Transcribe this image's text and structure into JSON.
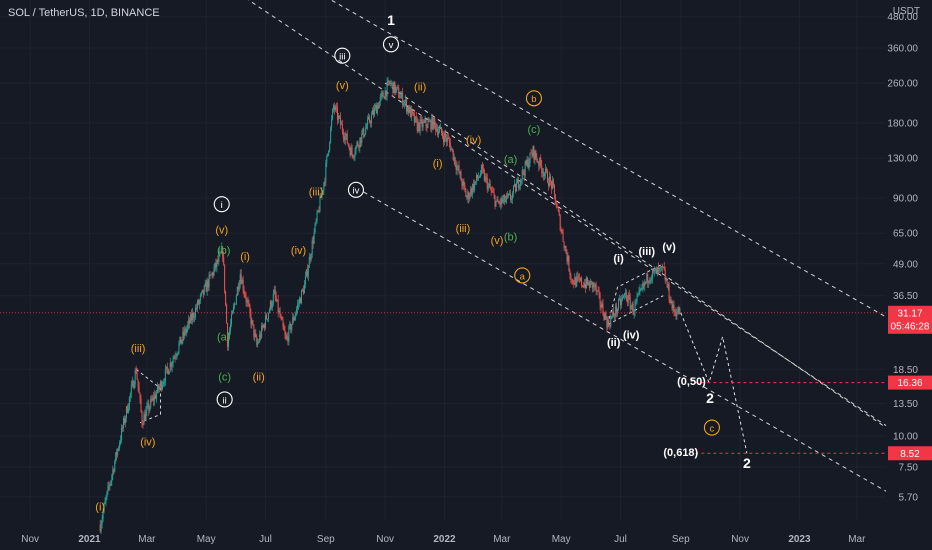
{
  "header": {
    "title": "SOL / TetherUS, 1D, BINANCE"
  },
  "price_scale": {
    "unit": "USDT",
    "ticks": [
      "480.00",
      "360.00",
      "260.00",
      "180.00",
      "130.00",
      "90.00",
      "65.00",
      "49.00",
      "36.50",
      "18.50",
      "13.50",
      "10.00",
      "7.50",
      "5.70"
    ]
  },
  "time_axis": {
    "labels": [
      "Nov",
      "2021",
      "Mar",
      "May",
      "Jul",
      "Sep",
      "Nov",
      "2022",
      "Mar",
      "May",
      "Jul",
      "Sep",
      "Nov",
      "2023",
      "Mar"
    ]
  },
  "badges": {
    "current": {
      "price": "31.17",
      "countdown": "05:46:28",
      "color": "#f23645"
    },
    "target1": {
      "price": "16.36",
      "color": "#f23645"
    },
    "target2": {
      "price": "8.52",
      "color": "#f23645"
    }
  },
  "colors": {
    "up": "#26a69a",
    "down": "#ef5350",
    "orange": "#f7a21b",
    "green": "#4caf50",
    "white": "#ffffff"
  },
  "chart_data": {
    "type": "candlestick",
    "symbol": "SOL / TetherUS",
    "interval": "1D",
    "exchange": "BINANCE",
    "y_scale": "log",
    "ylim": [
      4.6,
      560
    ],
    "x_range": [
      "2020-10-01",
      "2023-03-31"
    ],
    "last_price": 31.17,
    "key_points": [
      {
        "date": "2021-01-12",
        "price": 4.4
      },
      {
        "date": "2021-02-18",
        "price": 18.5
      },
      {
        "date": "2021-02-24",
        "price": 11.5
      },
      {
        "date": "2021-03-15",
        "price": 16.0
      },
      {
        "date": "2021-05-18",
        "price": 55.0
      },
      {
        "date": "2021-05-23",
        "price": 24.0
      },
      {
        "date": "2021-06-05",
        "price": 45.0
      },
      {
        "date": "2021-06-22",
        "price": 23.0
      },
      {
        "date": "2021-07-10",
        "price": 37.0
      },
      {
        "date": "2021-07-22",
        "price": 24.0
      },
      {
        "date": "2021-08-10",
        "price": 40.0
      },
      {
        "date": "2021-08-31",
        "price": 110.0
      },
      {
        "date": "2021-09-09",
        "price": 210.0
      },
      {
        "date": "2021-09-28",
        "price": 135.0
      },
      {
        "date": "2021-10-10",
        "price": 165.0
      },
      {
        "date": "2021-10-22",
        "price": 205.0
      },
      {
        "date": "2021-11-06",
        "price": 260.0
      },
      {
        "date": "2021-11-20",
        "price": 222.0
      },
      {
        "date": "2021-12-04",
        "price": 175.0
      },
      {
        "date": "2021-12-20",
        "price": 180.0
      },
      {
        "date": "2022-01-06",
        "price": 150.0
      },
      {
        "date": "2022-01-24",
        "price": 90.0
      },
      {
        "date": "2022-02-08",
        "price": 115.0
      },
      {
        "date": "2022-02-24",
        "price": 85.0
      },
      {
        "date": "2022-03-10",
        "price": 90.0
      },
      {
        "date": "2022-04-02",
        "price": 138.0
      },
      {
        "date": "2022-04-22",
        "price": 100.0
      },
      {
        "date": "2022-05-12",
        "price": 42.0
      },
      {
        "date": "2022-06-04",
        "price": 40.0
      },
      {
        "date": "2022-06-18",
        "price": 28.0
      },
      {
        "date": "2022-07-06",
        "price": 37.0
      },
      {
        "date": "2022-07-14",
        "price": 32.0
      },
      {
        "date": "2022-07-30",
        "price": 44.0
      },
      {
        "date": "2022-08-14",
        "price": 46.0
      },
      {
        "date": "2022-08-24",
        "price": 32.0
      },
      {
        "date": "2022-09-01",
        "price": 31.17
      }
    ],
    "projection": [
      {
        "date": "2022-09-01",
        "price": 31.17
      },
      {
        "date": "2022-09-30",
        "price": 16.36
      },
      {
        "date": "2022-10-14",
        "price": 25.0
      },
      {
        "date": "2022-11-08",
        "price": 8.52
      }
    ],
    "levels": [
      {
        "label": "(0,50)",
        "price": 16.36
      },
      {
        "label": "(0,618)",
        "price": 8.52
      }
    ],
    "channels": [
      {
        "line": [
          {
            "date": "2020-10-07",
            "price": 2500
          },
          {
            "date": "2023-03-31",
            "price": 11.0
          }
        ]
      },
      {
        "line": [
          {
            "date": "2021-08-24",
            "price": 600
          },
          {
            "date": "2023-03-31",
            "price": 30.0
          }
        ]
      },
      {
        "line": [
          {
            "date": "2021-10-10",
            "price": 95
          },
          {
            "date": "2023-03-31",
            "price": 6.0
          }
        ]
      },
      {
        "line": [
          {
            "date": "2021-11-01",
            "price": 260
          },
          {
            "date": "2023-03-31",
            "price": 10.8
          }
        ]
      }
    ],
    "triangles": [
      [
        {
          "date": "2021-02-18",
          "price": 18.5
        },
        {
          "date": "2021-03-15",
          "price": 15.5
        },
        {
          "date": "2021-03-15",
          "price": 12.2
        },
        {
          "date": "2021-02-22",
          "price": 11.3
        }
      ],
      [
        {
          "date": "2022-06-18",
          "price": 28.0
        },
        {
          "date": "2022-06-28",
          "price": 39.5
        },
        {
          "date": "2022-08-14",
          "price": 49.0
        }
      ],
      [
        {
          "date": "2022-06-18",
          "price": 28.0
        },
        {
          "date": "2022-08-14",
          "price": 36.5
        }
      ]
    ],
    "annotations": [
      {
        "text": "(i)",
        "date": "2021-01-12",
        "price": 5.2,
        "color": "orange"
      },
      {
        "text": "(iii)",
        "date": "2021-02-20",
        "price": 22.5,
        "color": "orange"
      },
      {
        "text": "(iv)",
        "date": "2021-03-02",
        "price": 9.5,
        "color": "orange"
      },
      {
        "text": "i",
        "date": "2021-05-17",
        "price": 85.0,
        "color": "white",
        "style": "circle"
      },
      {
        "text": "(v)",
        "date": "2021-05-17",
        "price": 67.0,
        "color": "orange"
      },
      {
        "text": "(b)",
        "date": "2021-05-19",
        "price": 55.5,
        "color": "green"
      },
      {
        "text": "(i)",
        "date": "2021-06-10",
        "price": 52.5,
        "color": "orange"
      },
      {
        "text": "(a)",
        "date": "2021-05-19",
        "price": 25.0,
        "color": "green"
      },
      {
        "text": "(c)",
        "date": "2021-05-20",
        "price": 17.3,
        "color": "green"
      },
      {
        "text": "ii",
        "date": "2021-05-20",
        "price": 14.0,
        "color": "white",
        "style": "circle"
      },
      {
        "text": "(ii)",
        "date": "2021-06-24",
        "price": 17.3,
        "color": "orange"
      },
      {
        "text": "(iv)",
        "date": "2021-08-04",
        "price": 55.5,
        "color": "orange"
      },
      {
        "text": "(iii)",
        "date": "2021-08-22",
        "price": 95.5,
        "color": "orange"
      },
      {
        "text": "iii",
        "date": "2021-09-18",
        "price": 335.0,
        "color": "white",
        "style": "circle"
      },
      {
        "text": "(v)",
        "date": "2021-09-18",
        "price": 255.0,
        "color": "orange"
      },
      {
        "text": "iv",
        "date": "2021-10-02",
        "price": 97.0,
        "color": "white",
        "style": "circle"
      },
      {
        "text": "1",
        "date": "2021-11-07",
        "price": 465.0,
        "color": "white"
      },
      {
        "text": "v",
        "date": "2021-11-07",
        "price": 372.0,
        "color": "white",
        "style": "circle"
      },
      {
        "text": "(ii)",
        "date": "2021-12-07",
        "price": 252.0,
        "color": "orange"
      },
      {
        "text": "(i)",
        "date": "2021-12-25",
        "price": 124.0,
        "color": "orange"
      },
      {
        "text": "(iv)",
        "date": "2022-01-31",
        "price": 154.0,
        "color": "orange"
      },
      {
        "text": "(a)",
        "date": "2022-03-10",
        "price": 128.5,
        "color": "green"
      },
      {
        "text": "b",
        "date": "2022-04-03",
        "price": 226.0,
        "color": "orange",
        "style": "circle"
      },
      {
        "text": "(c)",
        "date": "2022-04-03",
        "price": 170.0,
        "color": "green"
      },
      {
        "text": "(iii)",
        "date": "2022-01-20",
        "price": 68.0,
        "color": "orange"
      },
      {
        "text": "(v)",
        "date": "2022-02-24",
        "price": 61.0,
        "color": "orange"
      },
      {
        "text": "(b)",
        "date": "2022-03-10",
        "price": 63.0,
        "color": "green"
      },
      {
        "text": "a",
        "date": "2022-03-22",
        "price": 44.0,
        "color": "orange",
        "style": "circle"
      },
      {
        "text": "(i)",
        "date": "2022-06-29",
        "price": 51.5,
        "color": "white"
      },
      {
        "text": "(iii)",
        "date": "2022-07-28",
        "price": 55.0,
        "color": "white"
      },
      {
        "text": "(v)",
        "date": "2022-08-20",
        "price": 57.5,
        "color": "white"
      },
      {
        "text": "(iv)",
        "date": "2022-07-12",
        "price": 25.5,
        "color": "white"
      },
      {
        "text": "(ii)",
        "date": "2022-06-24",
        "price": 23.8,
        "color": "white"
      },
      {
        "text": "(0,50)",
        "date": "2022-09-12",
        "price": 16.6,
        "color": "white"
      },
      {
        "text": "2",
        "date": "2022-10-01",
        "price": 14.2,
        "color": "white"
      },
      {
        "text": "c",
        "date": "2022-10-03",
        "price": 10.8,
        "color": "orange",
        "style": "circle"
      },
      {
        "text": "(0,618)",
        "date": "2022-09-01",
        "price": 8.6,
        "color": "white"
      },
      {
        "text": "2",
        "date": "2022-11-08",
        "price": 7.8,
        "color": "white"
      }
    ]
  }
}
